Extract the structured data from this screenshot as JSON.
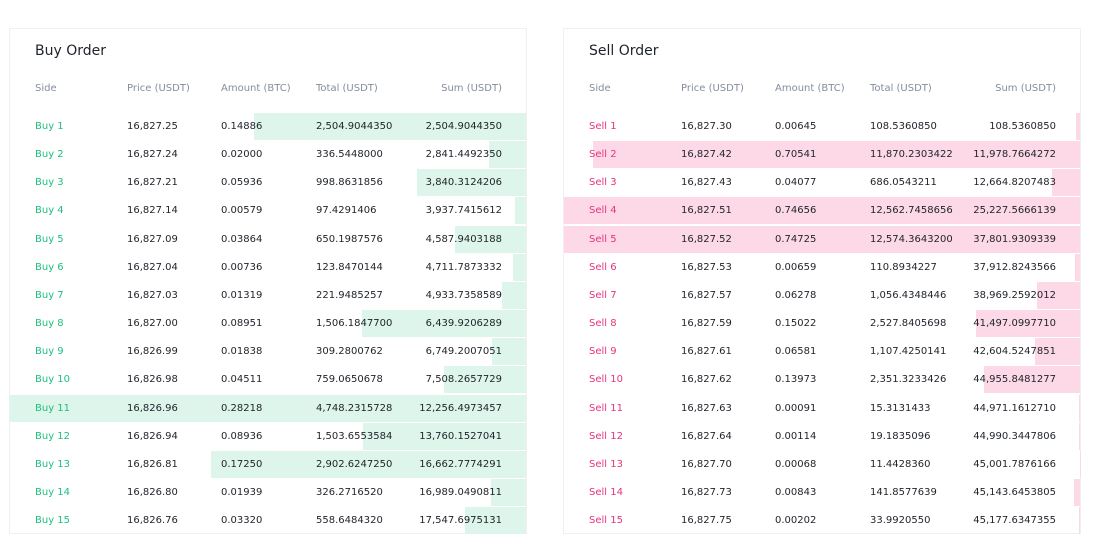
{
  "buy_order": {
    "title": "Buy Order",
    "columns": [
      "Side",
      "Price (USDT)",
      "Amount (BTC)",
      "Total (USDT)",
      "Sum (USDT)"
    ],
    "rows": [
      [
        "Buy 1",
        "16,827.25",
        "0.14886",
        "2,504.9044350",
        "2,504.9044350"
      ],
      [
        "Buy 2",
        "16,827.24",
        "0.02000",
        "336.5448000",
        "2,841.4492350"
      ],
      [
        "Buy 3",
        "16,827.21",
        "0.05936",
        "998.8631856",
        "3,840.3124206"
      ],
      [
        "Buy 4",
        "16,827.14",
        "0.00579",
        "97.4291406",
        "3,937.7415612"
      ],
      [
        "Buy 5",
        "16,827.09",
        "0.03864",
        "650.1987576",
        "4,587.9403188"
      ],
      [
        "Buy 6",
        "16,827.04",
        "0.00736",
        "123.8470144",
        "4,711.7873332"
      ],
      [
        "Buy 7",
        "16,827.03",
        "0.01319",
        "221.9485257",
        "4,933.7358589"
      ],
      [
        "Buy 8",
        "16,827.00",
        "0.08951",
        "1,506.1847700",
        "6,439.9206289"
      ],
      [
        "Buy 9",
        "16,826.99",
        "0.01838",
        "309.2800762",
        "6,749.2007051"
      ],
      [
        "Buy 10",
        "16,826.98",
        "0.04511",
        "759.0650678",
        "7,508.2657729"
      ],
      [
        "Buy 11",
        "16,826.96",
        "0.28218",
        "4,748.2315728",
        "12,256.4973457"
      ],
      [
        "Buy 12",
        "16,826.94",
        "0.08936",
        "1,503.6553584",
        "13,760.1527041"
      ],
      [
        "Buy 13",
        "16,826.81",
        "0.17250",
        "2,902.6247250",
        "16,662.7774291"
      ],
      [
        "Buy 14",
        "16,826.80",
        "0.01939",
        "326.2716520",
        "16,989.0490811"
      ],
      [
        "Buy 15",
        "16,826.76",
        "0.03320",
        "558.6484320",
        "17,547.6975131"
      ]
    ]
  },
  "sell_order": {
    "title": "Sell Order",
    "columns": [
      "Side",
      "Price (USDT)",
      "Amount (BTC)",
      "Total (USDT)",
      "Sum (USDT)"
    ],
    "rows": [
      [
        "Sell 1",
        "16,827.30",
        "0.00645",
        "108.5360850",
        "108.5360850"
      ],
      [
        "Sell 2",
        "16,827.42",
        "0.70541",
        "11,870.2303422",
        "11,978.7664272"
      ],
      [
        "Sell 3",
        "16,827.43",
        "0.04077",
        "686.0543211",
        "12,664.8207483"
      ],
      [
        "Sell 4",
        "16,827.51",
        "0.74656",
        "12,562.7458656",
        "25,227.5666139"
      ],
      [
        "Sell 5",
        "16,827.52",
        "0.74725",
        "12,574.3643200",
        "37,801.9309339"
      ],
      [
        "Sell 6",
        "16,827.53",
        "0.00659",
        "110.8934227",
        "37,912.8243566"
      ],
      [
        "Sell 7",
        "16,827.57",
        "0.06278",
        "1,056.4348446",
        "38,969.2592012"
      ],
      [
        "Sell 8",
        "16,827.59",
        "0.15022",
        "2,527.8405698",
        "41,497.0997710"
      ],
      [
        "Sell 9",
        "16,827.61",
        "0.06581",
        "1,107.4250141",
        "42,604.5247851"
      ],
      [
        "Sell 10",
        "16,827.62",
        "0.13973",
        "2,351.3233426",
        "44,955.8481277"
      ],
      [
        "Sell 11",
        "16,827.63",
        "0.00091",
        "15.3131433",
        "44,971.1612710"
      ],
      [
        "Sell 12",
        "16,827.64",
        "0.00114",
        "19.1835096",
        "44,990.3447806"
      ],
      [
        "Sell 13",
        "16,827.70",
        "0.00068",
        "11.4428360",
        "45,001.7876166"
      ],
      [
        "Sell 14",
        "16,827.73",
        "0.00843",
        "141.8577639",
        "45,143.6453805"
      ],
      [
        "Sell 15",
        "16,827.75",
        "0.00202",
        "33.9920550",
        "45,177.6347355"
      ]
    ]
  }
}
